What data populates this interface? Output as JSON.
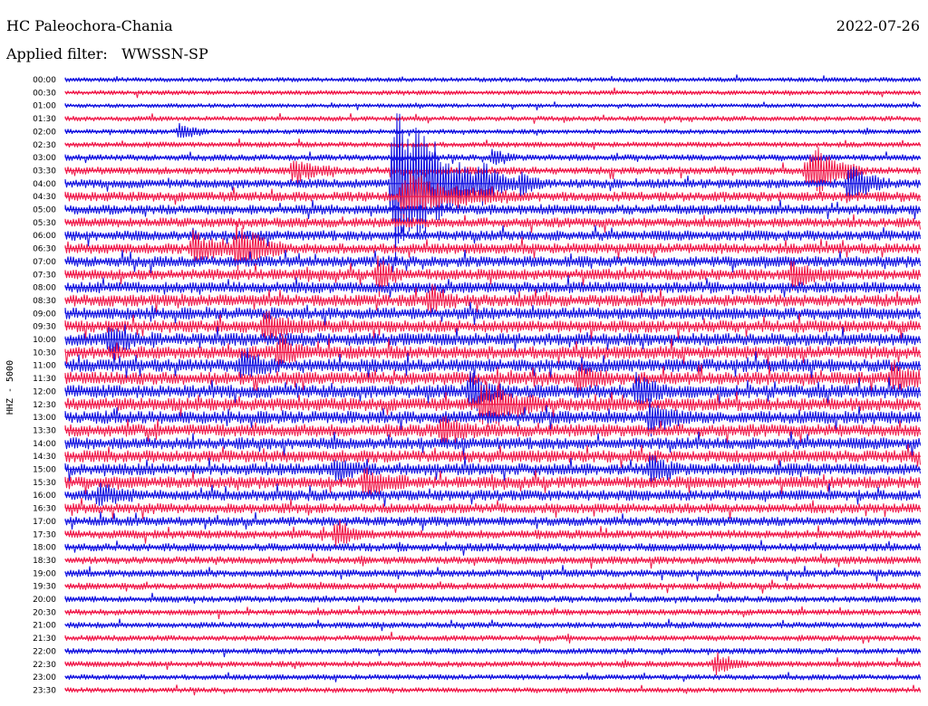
{
  "header": {
    "station": "HC Paleochora-Chania",
    "date": "2022-07-26",
    "filter_prefix": "Applied filter:",
    "filter_name": "WWSSN-SP"
  },
  "channel_label": "HHZ - 5000",
  "colors": {
    "trace_a": "#1010e0",
    "trace_b": "#f0194a",
    "text": "#000000",
    "background": "#ffffff"
  },
  "chart_data": {
    "type": "helicorder",
    "title": "HC Paleochora-Chania",
    "date": "2022-07-26",
    "filter": "WWSSN-SP",
    "channel": "HHZ - 5000",
    "row_interval_minutes": 30,
    "trace_color_cycle": [
      "#1010e0",
      "#f0194a"
    ],
    "rows": [
      {
        "time": "00:00",
        "color": "#1010e0",
        "activity": 0.15
      },
      {
        "time": "00:30",
        "color": "#f0194a",
        "activity": 0.15
      },
      {
        "time": "01:00",
        "color": "#1010e0",
        "activity": 0.12
      },
      {
        "time": "01:30",
        "color": "#f0194a",
        "activity": 0.18
      },
      {
        "time": "02:00",
        "color": "#1010e0",
        "activity": 0.18
      },
      {
        "time": "02:30",
        "color": "#f0194a",
        "activity": 0.22
      },
      {
        "time": "03:00",
        "color": "#1010e0",
        "activity": 0.3
      },
      {
        "time": "03:30",
        "color": "#f0194a",
        "activity": 0.42
      },
      {
        "time": "04:00",
        "color": "#1010e0",
        "activity": 0.55
      },
      {
        "time": "04:30",
        "color": "#f0194a",
        "activity": 0.6
      },
      {
        "time": "05:00",
        "color": "#1010e0",
        "activity": 0.62
      },
      {
        "time": "05:30",
        "color": "#f0194a",
        "activity": 0.6
      },
      {
        "time": "06:00",
        "color": "#1010e0",
        "activity": 0.65
      },
      {
        "time": "06:30",
        "color": "#f0194a",
        "activity": 0.68
      },
      {
        "time": "07:00",
        "color": "#1010e0",
        "activity": 0.7
      },
      {
        "time": "07:30",
        "color": "#f0194a",
        "activity": 0.72
      },
      {
        "time": "08:00",
        "color": "#1010e0",
        "activity": 0.75
      },
      {
        "time": "08:30",
        "color": "#f0194a",
        "activity": 0.8
      },
      {
        "time": "09:00",
        "color": "#1010e0",
        "activity": 0.82
      },
      {
        "time": "09:30",
        "color": "#f0194a",
        "activity": 0.85
      },
      {
        "time": "10:00",
        "color": "#1010e0",
        "activity": 0.88
      },
      {
        "time": "10:30",
        "color": "#f0194a",
        "activity": 0.88
      },
      {
        "time": "11:00",
        "color": "#1010e0",
        "activity": 0.9
      },
      {
        "time": "11:30",
        "color": "#f0194a",
        "activity": 0.9
      },
      {
        "time": "12:00",
        "color": "#1010e0",
        "activity": 0.92
      },
      {
        "time": "12:30",
        "color": "#f0194a",
        "activity": 0.9
      },
      {
        "time": "13:00",
        "color": "#1010e0",
        "activity": 0.88
      },
      {
        "time": "13:30",
        "color": "#f0194a",
        "activity": 0.85
      },
      {
        "time": "14:00",
        "color": "#1010e0",
        "activity": 0.8
      },
      {
        "time": "14:30",
        "color": "#f0194a",
        "activity": 0.82
      },
      {
        "time": "15:00",
        "color": "#1010e0",
        "activity": 0.8
      },
      {
        "time": "15:30",
        "color": "#f0194a",
        "activity": 0.78
      },
      {
        "time": "16:00",
        "color": "#1010e0",
        "activity": 0.7
      },
      {
        "time": "16:30",
        "color": "#f0194a",
        "activity": 0.62
      },
      {
        "time": "17:00",
        "color": "#1010e0",
        "activity": 0.55
      },
      {
        "time": "17:30",
        "color": "#f0194a",
        "activity": 0.5
      },
      {
        "time": "18:00",
        "color": "#1010e0",
        "activity": 0.45
      },
      {
        "time": "18:30",
        "color": "#f0194a",
        "activity": 0.42
      },
      {
        "time": "19:00",
        "color": "#1010e0",
        "activity": 0.4
      },
      {
        "time": "19:30",
        "color": "#f0194a",
        "activity": 0.35
      },
      {
        "time": "20:00",
        "color": "#1010e0",
        "activity": 0.3
      },
      {
        "time": "20:30",
        "color": "#f0194a",
        "activity": 0.28
      },
      {
        "time": "21:00",
        "color": "#1010e0",
        "activity": 0.28
      },
      {
        "time": "21:30",
        "color": "#f0194a",
        "activity": 0.25
      },
      {
        "time": "22:00",
        "color": "#1010e0",
        "activity": 0.25
      },
      {
        "time": "22:30",
        "color": "#f0194a",
        "activity": 0.28
      },
      {
        "time": "23:00",
        "color": "#1010e0",
        "activity": 0.22
      },
      {
        "time": "23:30",
        "color": "#f0194a",
        "activity": 0.2
      }
    ],
    "events": [
      {
        "row": "02:00",
        "minute": 4,
        "amplitude": 0.8,
        "duration_min": 1
      },
      {
        "row": "03:00",
        "minute": 15,
        "amplitude": 0.9,
        "duration_min": 0.8
      },
      {
        "row": "03:30",
        "minute": 26,
        "amplitude": 1.4,
        "duration_min": 2
      },
      {
        "row": "03:30",
        "minute": 8,
        "amplitude": 1.2,
        "duration_min": 1.5
      },
      {
        "row": "04:00",
        "minute": 11.5,
        "amplitude": 9.0,
        "duration_min": 3
      },
      {
        "row": "04:00",
        "minute": 12.5,
        "amplitude": 1.4,
        "duration_min": 1.5
      },
      {
        "row": "04:00",
        "minute": 14.6,
        "amplitude": 2.5,
        "duration_min": 1.2
      },
      {
        "row": "04:00",
        "minute": 16,
        "amplitude": 1.3,
        "duration_min": 0.8
      },
      {
        "row": "03:30",
        "minute": 26.3,
        "amplitude": 1.5,
        "duration_min": 1.6
      },
      {
        "row": "04:00",
        "minute": 27.5,
        "amplitude": 1.8,
        "duration_min": 1.4
      },
      {
        "row": "04:30",
        "minute": 11.8,
        "amplitude": 2.0,
        "duration_min": 4
      },
      {
        "row": "06:30",
        "minute": 4.5,
        "amplitude": 1.6,
        "duration_min": 1.4
      },
      {
        "row": "06:30",
        "minute": 6,
        "amplitude": 2.5,
        "duration_min": 1.6
      },
      {
        "row": "07:30",
        "minute": 11,
        "amplitude": 1.8,
        "duration_min": 0.8
      },
      {
        "row": "07:30",
        "minute": 25.5,
        "amplitude": 1.2,
        "duration_min": 1.5
      },
      {
        "row": "08:30",
        "minute": 12.8,
        "amplitude": 1.5,
        "duration_min": 1
      },
      {
        "row": "09:30",
        "minute": 7,
        "amplitude": 1.6,
        "duration_min": 1.5
      },
      {
        "row": "10:00",
        "minute": 1.5,
        "amplitude": 1.4,
        "duration_min": 1.2
      },
      {
        "row": "10:30",
        "minute": 7.5,
        "amplitude": 1.5,
        "duration_min": 1
      },
      {
        "row": "11:00",
        "minute": 6.2,
        "amplitude": 1.5,
        "duration_min": 1.2
      },
      {
        "row": "11:30",
        "minute": 18,
        "amplitude": 1.2,
        "duration_min": 1.2
      },
      {
        "row": "11:30",
        "minute": 29,
        "amplitude": 1.6,
        "duration_min": 1.2
      },
      {
        "row": "12:00",
        "minute": 14.2,
        "amplitude": 2.0,
        "duration_min": 1.2
      },
      {
        "row": "12:00",
        "minute": 20,
        "amplitude": 1.8,
        "duration_min": 1.2
      },
      {
        "row": "12:30",
        "minute": 14.6,
        "amplitude": 2.2,
        "duration_min": 2.2
      },
      {
        "row": "13:00",
        "minute": 20.5,
        "amplitude": 1.6,
        "duration_min": 1.4
      },
      {
        "row": "13:30",
        "minute": 13.2,
        "amplitude": 1.4,
        "duration_min": 1.2
      },
      {
        "row": "15:00",
        "minute": 20.5,
        "amplitude": 1.6,
        "duration_min": 1
      },
      {
        "row": "15:00",
        "minute": 9.5,
        "amplitude": 1.2,
        "duration_min": 1
      },
      {
        "row": "15:30",
        "minute": 10.5,
        "amplitude": 1.4,
        "duration_min": 1.6
      },
      {
        "row": "16:00",
        "minute": 1.2,
        "amplitude": 1.2,
        "duration_min": 1.2
      },
      {
        "row": "17:30",
        "minute": 9.5,
        "amplitude": 1.6,
        "duration_min": 1
      },
      {
        "row": "22:30",
        "minute": 22.8,
        "amplitude": 1.2,
        "duration_min": 1
      }
    ]
  }
}
